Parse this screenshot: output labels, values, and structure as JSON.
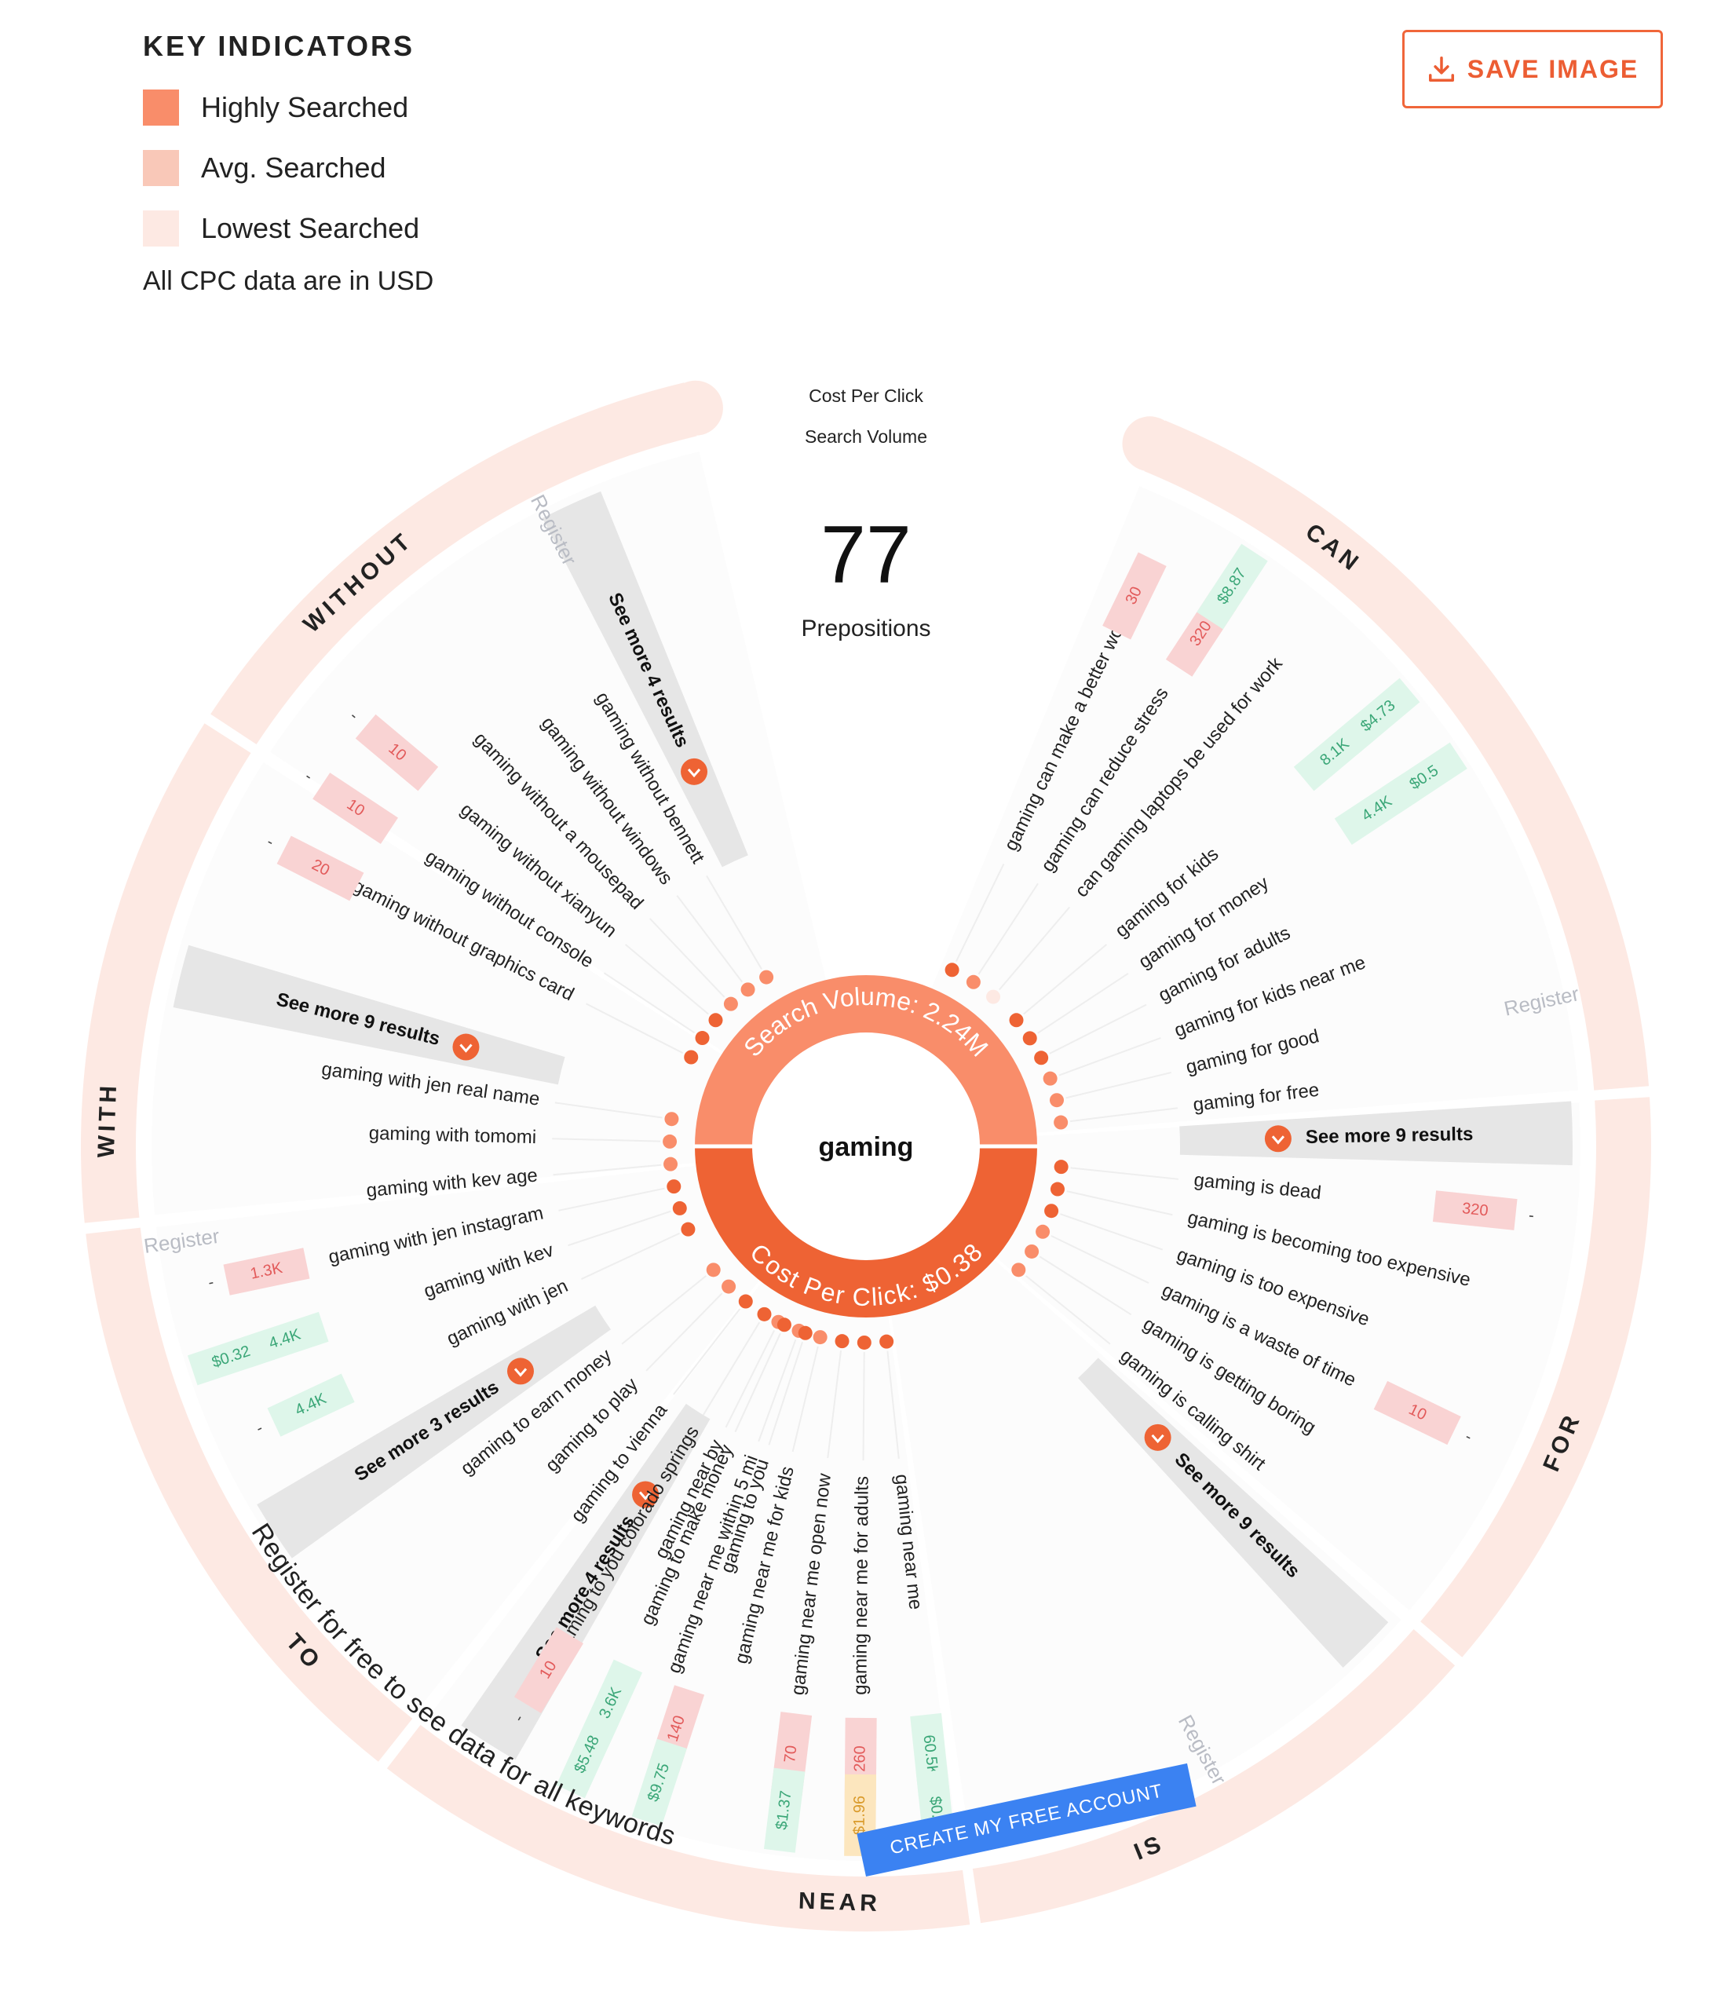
{
  "legend": {
    "title": "KEY INDICATORS",
    "items": [
      {
        "label": "Highly Searched",
        "color": "#f98d6a"
      },
      {
        "label": "Avg. Searched",
        "color": "#f9c8b8"
      },
      {
        "label": "Lowest Searched",
        "color": "#fde9e3"
      }
    ],
    "note": "All CPC data are in USD"
  },
  "save_button": {
    "label": "SAVE IMAGE"
  },
  "center": {
    "cpc_label": "Cost Per Click",
    "sv_label": "Search Volume",
    "count": "77",
    "count_label": "Prepositions",
    "keyword": "gaming",
    "search_volume_text": "Search Volume: 2.24M",
    "cpc_text": "Cost Per Click: $0.38"
  },
  "cta": {
    "register_text": "Register for free to see data for all keywords",
    "button": "CREATE MY FREE ACCOUNT"
  },
  "register_label": "Register",
  "colors": {
    "high": "#f98d6a",
    "avg": "#f9c8b8",
    "low": "#fde9e3",
    "accent": "#ee6334",
    "green": "#def6ea",
    "green_text": "#3aa677",
    "red_text": "#e25a5a",
    "tag_red": "#f9d3d3",
    "yellow": "#fce6be",
    "yellow_text": "#d99a2a"
  },
  "groups": [
    {
      "name": "CAN",
      "keywords": [
        {
          "text": "gaming can make a better world",
          "dot": "high",
          "metrics": [
            "30",
            ""
          ]
        },
        {
          "text": "gaming can reduce stress",
          "dot": "avg",
          "metrics": [
            "320",
            "$8.87"
          ]
        },
        {
          "text": "can gaming laptops be used for work",
          "dot": "low",
          "metrics": [
            "",
            ""
          ]
        }
      ]
    },
    {
      "name": "FOR",
      "more": "See more 9 results",
      "keywords": [
        {
          "text": "gaming for kids",
          "dot": "high",
          "metrics": [
            "8.1K",
            "$4.73"
          ]
        },
        {
          "text": "gaming for money",
          "dot": "high",
          "metrics": [
            "4.4K",
            "$0.5"
          ]
        },
        {
          "text": "gaming for adults",
          "dot": "high",
          "metrics": [
            "",
            ""
          ]
        },
        {
          "text": "gaming for kids near me",
          "dot": "avg",
          "metrics": [
            "",
            ""
          ]
        },
        {
          "text": "gaming for good",
          "dot": "avg",
          "metrics": [
            "",
            ""
          ]
        },
        {
          "text": "gaming for free",
          "dot": "avg",
          "metrics": [
            "",
            ""
          ]
        }
      ]
    },
    {
      "name": "IS",
      "more": "See more 9 results",
      "keywords": [
        {
          "text": "gaming is dead",
          "dot": "high",
          "metrics": [
            "320",
            "-"
          ]
        },
        {
          "text": "gaming is becoming too expensive",
          "dot": "high",
          "metrics": [
            "",
            ""
          ]
        },
        {
          "text": "gaming is too expensive",
          "dot": "high",
          "metrics": [
            "",
            ""
          ]
        },
        {
          "text": "gaming is a waste of time",
          "dot": "avg",
          "metrics": [
            "10",
            "-"
          ]
        },
        {
          "text": "gaming is getting boring",
          "dot": "avg",
          "metrics": [
            "",
            ""
          ]
        },
        {
          "text": "gaming is calling shirt",
          "dot": "avg",
          "metrics": [
            "",
            ""
          ]
        }
      ]
    },
    {
      "name": "NEAR",
      "more": "See more 4 results",
      "keywords": [
        {
          "text": "gaming near me",
          "dot": "high",
          "metrics": [
            "60.5K",
            "$0.9"
          ]
        },
        {
          "text": "gaming near me for adults",
          "dot": "high",
          "metrics": [
            "260",
            "$1.96"
          ]
        },
        {
          "text": "gaming near me open now",
          "dot": "high",
          "metrics": [
            "70",
            "$1.37"
          ]
        },
        {
          "text": "gaming near me for kids",
          "dot": "avg",
          "metrics": [
            "",
            ""
          ]
        },
        {
          "text": "gaming near me within 5 mi",
          "dot": "avg",
          "metrics": [
            "",
            ""
          ]
        },
        {
          "text": "gaming near by",
          "dot": "avg",
          "metrics": [
            "",
            ""
          ]
        }
      ]
    },
    {
      "name": "TO",
      "more": "See more 3 results",
      "keywords": [
        {
          "text": "gaming to you",
          "dot": "high",
          "metrics": [
            "140",
            "$9.75"
          ]
        },
        {
          "text": "gaming to make money",
          "dot": "high",
          "metrics": [
            "3.6K",
            "$5.48"
          ]
        },
        {
          "text": "gaming to you colorado springs",
          "dot": "high",
          "metrics": [
            "10",
            "-"
          ]
        },
        {
          "text": "gaming to vienna",
          "dot": "high",
          "metrics": [
            "",
            ""
          ]
        },
        {
          "text": "gaming to play",
          "dot": "avg",
          "metrics": [
            "",
            ""
          ]
        },
        {
          "text": "gaming to earn money",
          "dot": "avg",
          "metrics": [
            "",
            ""
          ]
        }
      ]
    },
    {
      "name": "WITH",
      "more": "See more 9 results",
      "keywords": [
        {
          "text": "gaming with jen",
          "dot": "high",
          "metrics": [
            "4.4K",
            "-"
          ]
        },
        {
          "text": "gaming with kev",
          "dot": "high",
          "metrics": [
            "4.4K",
            "$0.32"
          ]
        },
        {
          "text": "gaming with jen instagram",
          "dot": "high",
          "metrics": [
            "1.3K",
            "-"
          ]
        },
        {
          "text": "gaming with kev age",
          "dot": "avg",
          "metrics": [
            "",
            ""
          ]
        },
        {
          "text": "gaming with tomomi",
          "dot": "avg",
          "metrics": [
            "",
            ""
          ]
        },
        {
          "text": "gaming with jen real name",
          "dot": "avg",
          "metrics": [
            "",
            ""
          ]
        }
      ]
    },
    {
      "name": "WITHOUT",
      "more": "See more 4 results",
      "keywords": [
        {
          "text": "gaming without graphics card",
          "dot": "high",
          "metrics": [
            "20",
            "-"
          ]
        },
        {
          "text": "gaming without console",
          "dot": "high",
          "metrics": [
            "10",
            "-"
          ]
        },
        {
          "text": "gaming without xianyun",
          "dot": "high",
          "metrics": [
            "10",
            "-"
          ]
        },
        {
          "text": "gaming without a mousepad",
          "dot": "avg",
          "metrics": [
            "",
            ""
          ]
        },
        {
          "text": "gaming without windows",
          "dot": "avg",
          "metrics": [
            "",
            ""
          ]
        },
        {
          "text": "gaming without bennett",
          "dot": "avg",
          "metrics": [
            "",
            ""
          ]
        }
      ]
    }
  ]
}
